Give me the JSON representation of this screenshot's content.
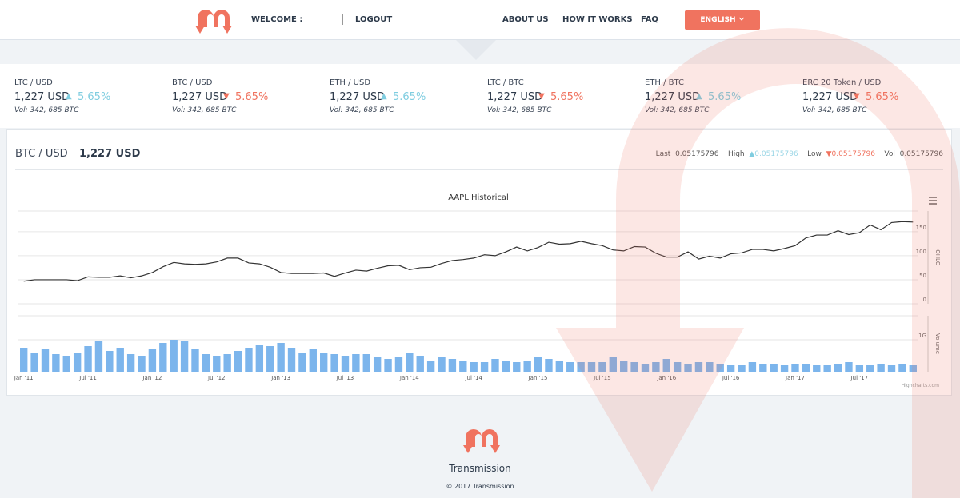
{
  "nav": {
    "welcome": "WELCOME :",
    "logout": "LOGOUT",
    "links": [
      "ABOUT US",
      "HOW IT WORKS",
      "FAQ"
    ],
    "language": "ENGLISH"
  },
  "tickers": [
    {
      "pair": "LTC / USD",
      "price": "1,227 USD",
      "arrow": "▲",
      "change": "5.65%",
      "direction": "up",
      "volume": "Vol: 342, 685 BTC"
    },
    {
      "pair": "BTC / USD",
      "price": "1,227 USD",
      "arrow": "▼",
      "change": "5.65%",
      "direction": "down",
      "volume": "Vol: 342, 685 BTC"
    },
    {
      "pair": "ETH / USD",
      "price": "1,227 USD",
      "arrow": "▲",
      "change": "5.65%",
      "direction": "up",
      "volume": "Vol: 342, 685 BTC"
    },
    {
      "pair": "LTC / BTC",
      "price": "1,227 USD",
      "arrow": "▼",
      "change": "5.65%",
      "direction": "down",
      "volume": "Vol: 342, 685 BTC"
    },
    {
      "pair": "ETH / BTC",
      "price": "1,227 USD",
      "arrow": "▲",
      "change": "5.65%",
      "direction": "up",
      "volume": "Vol: 342, 685 BTC"
    },
    {
      "pair": "ERC 20 Token / USD",
      "price": "1,227 USD",
      "arrow": "▼",
      "change": "5.65%",
      "direction": "down",
      "volume": "Vol: 342, 685 BTC"
    }
  ],
  "detail": {
    "pair": "BTC / USD",
    "price": "1,227 USD",
    "last_label": "Last",
    "last": "0.05175796",
    "high_label": "High",
    "high_arrow": "▲",
    "high": "0.05175796",
    "low_label": "Low",
    "low_arrow": "▼",
    "low": "0.05175796",
    "vol_label": "Vol",
    "vol": "0.05175796"
  },
  "chart_data": {
    "type": "line",
    "title": "AAPL Historical",
    "y_label": "OHLC",
    "y2_label": "Volume",
    "credit": "Highcharts.com",
    "categories": [
      "Jan '11",
      null,
      null,
      null,
      null,
      null,
      "Jul '11",
      null,
      null,
      null,
      null,
      null,
      "Jan '12",
      null,
      null,
      null,
      null,
      null,
      "Jul '12",
      null,
      null,
      null,
      null,
      null,
      "Jan '13",
      null,
      null,
      null,
      null,
      null,
      "Jul '13",
      null,
      null,
      null,
      null,
      null,
      "Jan '14",
      null,
      null,
      null,
      null,
      null,
      "Jul '14",
      null,
      null,
      null,
      null,
      null,
      "Jan '15",
      null,
      null,
      null,
      null,
      null,
      "Jul '15",
      null,
      null,
      null,
      null,
      null,
      "Jan '16",
      null,
      null,
      null,
      null,
      null,
      "Jul '16",
      null,
      null,
      null,
      null,
      null,
      "Jan '17",
      null,
      null,
      null,
      null,
      null,
      "Jul '17",
      null,
      null,
      null,
      null,
      null
    ],
    "series": [
      {
        "color": "#333333",
        "values": [
          47,
          50,
          50,
          50,
          50,
          48,
          56,
          55,
          55,
          58,
          54,
          58,
          65,
          77,
          86,
          83,
          82,
          83,
          87,
          95,
          95,
          85,
          83,
          76,
          65,
          63,
          63,
          63,
          64,
          57,
          64,
          70,
          68,
          74,
          79,
          80,
          71,
          75,
          76,
          84,
          90,
          92,
          95,
          102,
          100,
          108,
          118,
          110,
          117,
          128,
          124,
          125,
          130,
          125,
          121,
          112,
          110,
          119,
          118,
          105,
          97,
          97,
          108,
          93,
          99,
          95,
          104,
          106,
          113,
          113,
          110,
          115,
          121,
          137,
          143,
          143,
          152,
          144,
          148,
          164,
          154,
          169,
          171,
          170
        ]
      },
      {
        "color": "#7cb5ec",
        "axis": "y2",
        "values": [
          0.75,
          0.6,
          0.7,
          0.55,
          0.5,
          0.6,
          0.8,
          0.95,
          0.65,
          0.75,
          0.55,
          0.5,
          0.7,
          0.9,
          1.0,
          0.95,
          0.7,
          0.55,
          0.5,
          0.55,
          0.65,
          0.75,
          0.85,
          0.8,
          0.9,
          0.75,
          0.6,
          0.7,
          0.6,
          0.55,
          0.5,
          0.55,
          0.55,
          0.45,
          0.4,
          0.45,
          0.6,
          0.5,
          0.35,
          0.45,
          0.4,
          0.35,
          0.3,
          0.3,
          0.4,
          0.35,
          0.3,
          0.35,
          0.45,
          0.4,
          0.35,
          0.3,
          0.3,
          0.3,
          0.3,
          0.45,
          0.35,
          0.3,
          0.25,
          0.3,
          0.4,
          0.3,
          0.25,
          0.3,
          0.3,
          0.25,
          0.2,
          0.2,
          0.3,
          0.25,
          0.25,
          0.2,
          0.25,
          0.25,
          0.2,
          0.2,
          0.25,
          0.3,
          0.2,
          0.2,
          0.25,
          0.2,
          0.25,
          0.2
        ]
      }
    ],
    "ylim": [
      0,
      193
    ],
    "yticks": [
      0,
      50,
      100,
      150
    ],
    "y2lim": [
      0,
      1.75
    ],
    "y2ticks": [
      {
        "value": 1,
        "label": "1G"
      }
    ],
    "grid": true
  },
  "footer": {
    "brand": "Transmission",
    "copyright": "© 2017 Transmission"
  }
}
